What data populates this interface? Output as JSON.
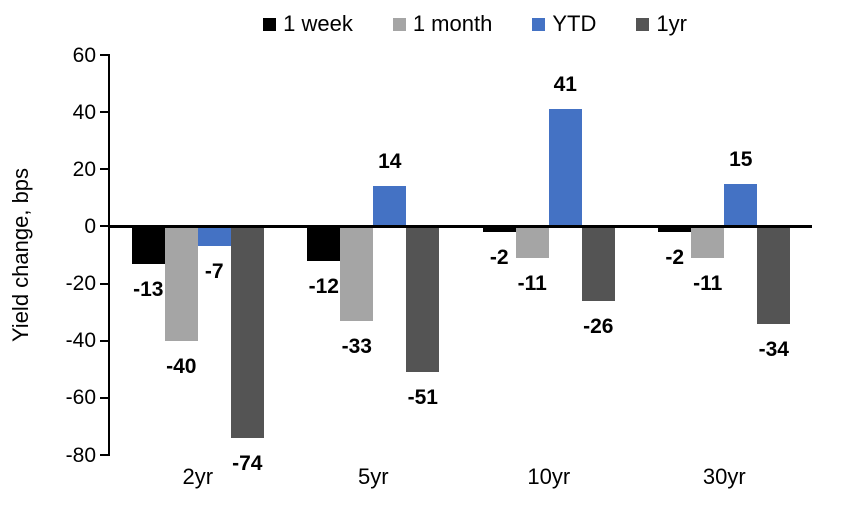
{
  "chart_data": {
    "type": "bar",
    "title": "",
    "xlabel": "",
    "ylabel": "Yield change, bps",
    "categories": [
      "2yr",
      "5yr",
      "10yr",
      "30yr"
    ],
    "series": [
      {
        "name": "1 week",
        "color": "#000000",
        "values": [
          -13,
          -12,
          -2,
          -2
        ]
      },
      {
        "name": "1 month",
        "color": "#A5A5A5",
        "values": [
          -40,
          -33,
          -11,
          -11
        ]
      },
      {
        "name": "YTD",
        "color": "#4472C4",
        "values": [
          -7,
          14,
          41,
          15
        ]
      },
      {
        "name": "1yr",
        "color": "#545454",
        "values": [
          -74,
          -51,
          -26,
          -34
        ]
      }
    ],
    "ylim": [
      -80,
      60
    ],
    "ytick_step": 20,
    "yticks": [
      60,
      40,
      20,
      0,
      -20,
      -40,
      -60,
      -80
    ],
    "legend_position": "top",
    "grid": false,
    "data_labels": true
  }
}
